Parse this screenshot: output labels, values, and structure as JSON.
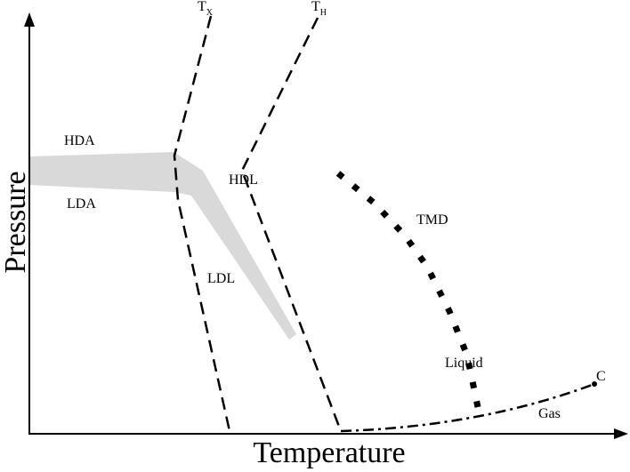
{
  "axes": {
    "x_label": "Temperature",
    "y_label": "Pressure"
  },
  "curves": {
    "tx": {
      "main": "T",
      "sub": "X"
    },
    "th": {
      "main": "T",
      "sub": "H"
    },
    "tmd": "TMD",
    "critical_point": "C"
  },
  "regions": {
    "hda": "HDA",
    "lda": "LDA",
    "hdl": "HDL",
    "ldl": "LDL",
    "liquid": "Liquid",
    "gas": "Gas"
  }
}
